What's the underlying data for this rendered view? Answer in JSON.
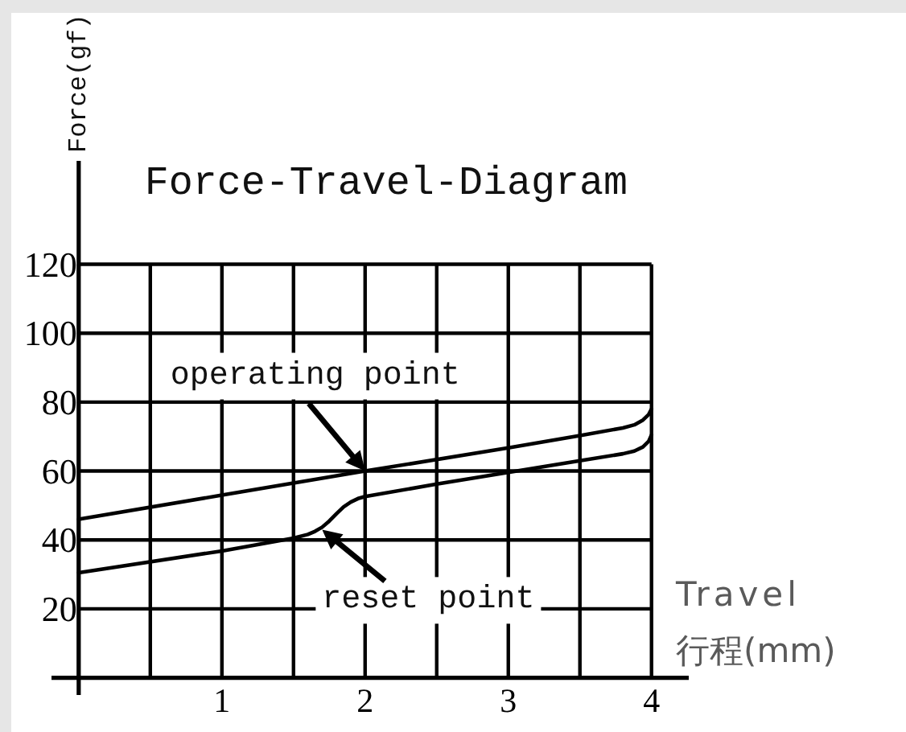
{
  "chart_data": {
    "type": "line",
    "title": "Force-Travel-Diagram",
    "xlabel": "Travel\n行程(mm)",
    "ylabel": "Force(gf)",
    "series": [
      {
        "color": "#000000",
        "x": [
          0,
          1,
          2,
          3,
          3.5,
          3.8,
          3.88,
          3.94,
          3.98,
          4
        ],
        "values": [
          46,
          53,
          60,
          66.7,
          70.3,
          72.5,
          73.4,
          74.8,
          76.4,
          78
        ]
      },
      {
        "color": "#000000",
        "x": [
          0,
          1,
          1.5,
          1.6,
          1.65,
          1.7,
          1.75,
          1.8,
          1.85,
          1.9,
          1.95,
          2,
          2.5,
          3,
          3.5,
          3.8,
          3.88,
          3.94,
          3.98,
          4
        ],
        "values": [
          30.5,
          36.8,
          40.5,
          41.6,
          42.5,
          43.7,
          45.5,
          47.6,
          49.6,
          51,
          52,
          52.6,
          56.2,
          59.6,
          63,
          65,
          65.8,
          67,
          68.6,
          70.5
        ]
      }
    ],
    "xlim": [
      -0.19,
      4.26
    ],
    "ylim": [
      -5,
      150
    ],
    "xticks": [
      {
        "value": 0,
        "label": null
      },
      {
        "value": 0.5,
        "label": null
      },
      1,
      {
        "value": 1.5,
        "label": null
      },
      2,
      {
        "value": 2.5,
        "label": null
      },
      3,
      {
        "value": 3.5,
        "label": null
      },
      4
    ],
    "yticks": [
      {
        "value": 0,
        "label": null
      },
      20,
      40,
      60,
      80,
      100,
      120
    ],
    "grid": true,
    "marker": "none",
    "line_style": "solid",
    "annotations": [
      {
        "text": "operating point",
        "x": 2,
        "y": 60
      },
      {
        "text": "reset point",
        "x": 1.7,
        "y": 43
      }
    ]
  }
}
